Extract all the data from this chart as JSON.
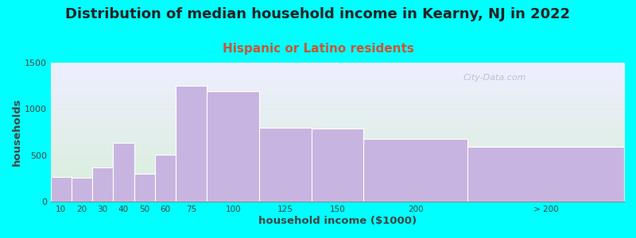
{
  "title": "Distribution of median household income in Kearny, NJ in 2022",
  "subtitle": "Hispanic or Latino residents",
  "xlabel": "household income ($1000)",
  "ylabel": "households",
  "background_color": "#00FFFF",
  "bar_color": "#c8b4e0",
  "bar_edge_color": "#ffffff",
  "categories": [
    "10",
    "20",
    "30",
    "40",
    "50",
    "60",
    "75",
    "100",
    "125",
    "150",
    "200",
    "> 200"
  ],
  "bar_lefts": [
    0,
    10,
    20,
    30,
    40,
    50,
    60,
    75,
    100,
    125,
    150,
    200
  ],
  "bar_widths": [
    10,
    10,
    10,
    10,
    10,
    10,
    15,
    25,
    25,
    25,
    50,
    75
  ],
  "bar_values": [
    265,
    260,
    370,
    640,
    300,
    510,
    1250,
    1190,
    800,
    790,
    680,
    590
  ],
  "ylim": [
    0,
    1500
  ],
  "yticks": [
    0,
    500,
    1000,
    1500
  ],
  "xtick_positions": [
    5,
    15,
    25,
    35,
    45,
    55,
    67.5,
    87.5,
    112.5,
    137.5,
    175,
    237.5
  ],
  "xtick_labels": [
    "10",
    "20",
    "30",
    "40",
    "50",
    "60",
    "75",
    "100",
    "125",
    "150",
    "200",
    "> 200"
  ],
  "xlim": [
    0,
    275
  ],
  "grid_color": "#e8e8e8",
  "title_fontsize": 13,
  "subtitle_fontsize": 11,
  "subtitle_color": "#cc5533",
  "watermark": "City-Data.com",
  "gradient_colors": [
    "#d8eeda",
    "#eeeeff"
  ]
}
